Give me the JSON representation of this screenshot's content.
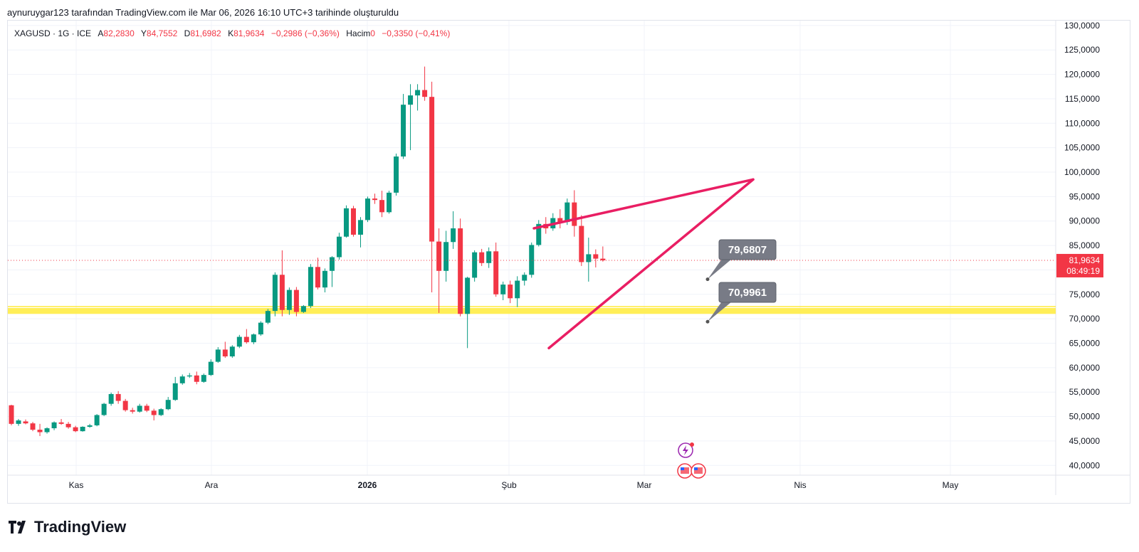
{
  "header": {
    "author_line": "aynuruygar123 tarafından TradingView.com ile Mar 06, 2026 16:10 UTC+3 tarihinde oluşturuldu"
  },
  "legend": {
    "symbol": "XAGUSD · 1G · ICE",
    "open_label": "A",
    "open_value": "82,2830",
    "high_label": "Y",
    "high_value": "84,7552",
    "low_label": "D",
    "low_value": "81,6982",
    "close_label": "K",
    "close_value": "81,9634",
    "change": "−0,2986 (−0,36%)",
    "volume_label": "Hacim",
    "volume_value": "0",
    "volume_change": "−0,3350 (−0,41%)"
  },
  "brand": {
    "name": "TradingView"
  },
  "colors": {
    "up": "#089981",
    "down": "#f23645",
    "highlight": "#ffeb3b",
    "trendline": "#e91e63",
    "callout": "#787b86"
  },
  "chart_data": {
    "type": "candlestick",
    "x_axis_labels": [
      "Kas",
      "Ara",
      "2026",
      "Şub",
      "Mar",
      "Nis",
      "May"
    ],
    "y_axis_labels": [
      "130,0000",
      "125,0000",
      "120,0000",
      "115,0000",
      "110,0000",
      "105,0000",
      "100,0000",
      "95,0000",
      "90,0000",
      "85,0000",
      "80,0000",
      "75,0000",
      "70,0000",
      "65,0000",
      "60,0000",
      "55,0000",
      "50,0000",
      "45,0000",
      "40,0000"
    ],
    "ylim": [
      38,
      131
    ],
    "grid": true,
    "last_price": {
      "label": "81,9634",
      "countdown": "08:49:19",
      "value": 81.96
    },
    "support_zone": {
      "from": 71.0,
      "to": 72.2
    },
    "annotations": [
      {
        "text": "79,6807",
        "value": 79.68
      },
      {
        "text": "70,9961",
        "value": 71.0
      }
    ],
    "trendlines": [
      {
        "from": 88.5,
        "to": 98.5
      },
      {
        "from": 64.0,
        "to": 98.5
      }
    ],
    "candles": [
      [
        52.3,
        52.4,
        48.2,
        48.5
      ],
      [
        48.5,
        49.5,
        48.1,
        49.2
      ],
      [
        49.0,
        49.4,
        48.4,
        48.6
      ],
      [
        48.6,
        48.9,
        47.0,
        47.3
      ],
      [
        47.3,
        48.5,
        46.0,
        46.8
      ],
      [
        46.8,
        47.8,
        46.5,
        47.6
      ],
      [
        47.6,
        49.0,
        47.2,
        48.8
      ],
      [
        48.8,
        49.5,
        48.3,
        48.5
      ],
      [
        48.5,
        48.9,
        47.5,
        47.8
      ],
      [
        47.8,
        48.1,
        46.8,
        47.0
      ],
      [
        47.0,
        48.0,
        46.9,
        47.9
      ],
      [
        47.9,
        48.5,
        47.7,
        48.2
      ],
      [
        48.2,
        50.5,
        48.0,
        50.3
      ],
      [
        50.3,
        52.8,
        50.1,
        52.6
      ],
      [
        52.6,
        54.9,
        52.2,
        54.6
      ],
      [
        54.6,
        55.2,
        52.6,
        53.2
      ],
      [
        53.2,
        53.6,
        51.0,
        51.3
      ],
      [
        51.3,
        51.8,
        50.6,
        51.0
      ],
      [
        51.0,
        52.6,
        50.8,
        52.2
      ],
      [
        52.2,
        52.6,
        50.9,
        51.2
      ],
      [
        51.2,
        51.6,
        49.2,
        50.3
      ],
      [
        50.3,
        51.7,
        50.1,
        51.5
      ],
      [
        51.5,
        54.0,
        51.3,
        53.4
      ],
      [
        53.4,
        58.1,
        53.2,
        56.8
      ],
      [
        56.8,
        58.6,
        56.5,
        58.2
      ],
      [
        58.2,
        58.9,
        57.9,
        58.4
      ],
      [
        58.4,
        59.2,
        56.6,
        57.1
      ],
      [
        57.1,
        58.8,
        56.9,
        58.5
      ],
      [
        58.5,
        61.7,
        58.3,
        61.2
      ],
      [
        61.2,
        64.2,
        61.0,
        63.7
      ],
      [
        63.7,
        65.3,
        62.0,
        62.3
      ],
      [
        62.3,
        64.6,
        62.0,
        64.3
      ],
      [
        64.3,
        66.7,
        64.0,
        66.3
      ],
      [
        66.3,
        67.9,
        64.9,
        65.2
      ],
      [
        65.2,
        67.0,
        64.8,
        66.8
      ],
      [
        66.8,
        69.5,
        66.5,
        69.2
      ],
      [
        69.2,
        72.0,
        68.9,
        71.6
      ],
      [
        71.6,
        79.5,
        70.5,
        79.0
      ],
      [
        79.0,
        84.0,
        70.5,
        71.8
      ],
      [
        71.8,
        76.4,
        70.8,
        75.9
      ],
      [
        75.9,
        76.5,
        70.5,
        71.4
      ],
      [
        71.4,
        72.8,
        71.2,
        72.6
      ],
      [
        72.6,
        81.2,
        72.2,
        80.6
      ],
      [
        80.6,
        82.5,
        76.0,
        76.4
      ],
      [
        76.4,
        80.3,
        75.4,
        79.8
      ],
      [
        79.8,
        82.8,
        76.5,
        82.6
      ],
      [
        82.6,
        87.6,
        82.1,
        86.8
      ],
      [
        86.8,
        93.2,
        86.6,
        92.6
      ],
      [
        92.6,
        93.1,
        86.8,
        87.2
      ],
      [
        87.2,
        90.8,
        84.6,
        90.2
      ],
      [
        90.2,
        95.0,
        89.8,
        94.6
      ],
      [
        94.6,
        95.6,
        93.5,
        94.3
      ],
      [
        94.3,
        96.2,
        90.8,
        91.8
      ],
      [
        91.8,
        96.2,
        91.5,
        95.8
      ],
      [
        95.8,
        103.8,
        95.2,
        103.2
      ],
      [
        103.2,
        116.0,
        102.7,
        113.8
      ],
      [
        113.8,
        118.0,
        104.5,
        115.7
      ],
      [
        115.7,
        118.0,
        112.6,
        116.8
      ],
      [
        116.8,
        121.6,
        114.6,
        115.4
      ],
      [
        115.4,
        118.5,
        75.4,
        85.8
      ],
      [
        85.8,
        88.5,
        71.2,
        79.8
      ],
      [
        79.8,
        88.0,
        77.6,
        85.7
      ],
      [
        85.7,
        92.0,
        84.3,
        88.5
      ],
      [
        88.5,
        90.5,
        70.5,
        71.0
      ],
      [
        71.0,
        78.6,
        64.0,
        78.4
      ],
      [
        78.4,
        84.0,
        77.6,
        83.6
      ],
      [
        83.6,
        84.3,
        80.8,
        81.4
      ],
      [
        81.4,
        84.6,
        80.4,
        83.8
      ],
      [
        83.8,
        85.6,
        74.5,
        75.0
      ],
      [
        75.0,
        77.6,
        73.8,
        77.0
      ],
      [
        77.0,
        77.8,
        73.2,
        74.2
      ],
      [
        74.2,
        78.7,
        72.4,
        77.8
      ],
      [
        77.8,
        79.5,
        76.8,
        79.0
      ],
      [
        79.0,
        85.6,
        78.4,
        85.1
      ],
      [
        85.1,
        90.2,
        84.8,
        89.4
      ],
      [
        89.4,
        90.8,
        87.4,
        88.5
      ],
      [
        88.5,
        91.6,
        88.0,
        90.6
      ],
      [
        90.6,
        92.4,
        88.5,
        89.8
      ],
      [
        89.8,
        94.6,
        89.2,
        93.8
      ],
      [
        93.8,
        96.3,
        86.8,
        89.0
      ],
      [
        89.0,
        91.2,
        80.8,
        81.6
      ],
      [
        81.6,
        86.6,
        77.6,
        83.2
      ],
      [
        83.2,
        84.2,
        80.5,
        82.3
      ],
      [
        82.3,
        84.8,
        81.7,
        81.96
      ]
    ]
  }
}
